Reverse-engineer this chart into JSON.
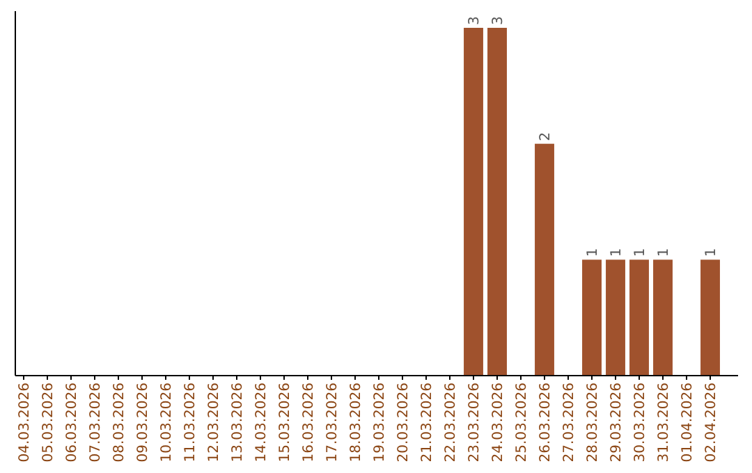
{
  "chart_data": {
    "type": "bar",
    "categories": [
      "04.03.2026",
      "05.03.2026",
      "06.03.2026",
      "07.03.2026",
      "08.03.2026",
      "09.03.2026",
      "10.03.2026",
      "11.03.2026",
      "12.03.2026",
      "13.03.2026",
      "14.03.2026",
      "15.03.2026",
      "16.03.2026",
      "17.03.2026",
      "18.03.2026",
      "19.03.2026",
      "20.03.2026",
      "21.03.2026",
      "22.03.2026",
      "23.03.2026",
      "24.03.2026",
      "25.03.2026",
      "26.03.2026",
      "27.03.2026",
      "28.03.2026",
      "29.03.2026",
      "30.03.2026",
      "31.03.2026",
      "01.04.2026",
      "02.04.2026"
    ],
    "values": [
      null,
      null,
      null,
      null,
      null,
      null,
      null,
      null,
      null,
      null,
      null,
      null,
      null,
      null,
      null,
      null,
      null,
      null,
      null,
      3,
      3,
      null,
      2,
      null,
      1,
      1,
      1,
      1,
      null,
      1
    ],
    "data_labels": true,
    "color": "#a0522d",
    "tick_labels": "x"
  }
}
